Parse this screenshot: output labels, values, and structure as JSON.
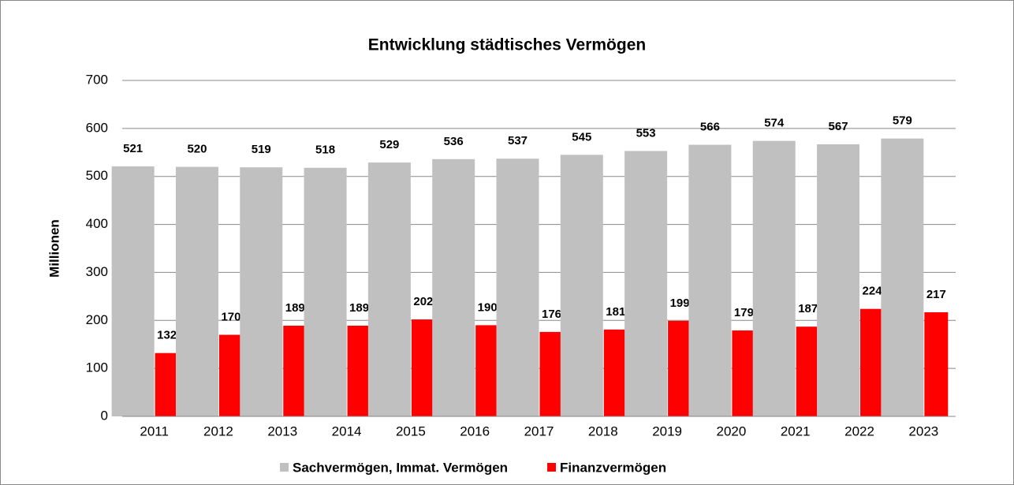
{
  "chart_data": {
    "type": "bar",
    "title": "Entwicklung städtisches Vermögen",
    "y_label": "Millionen",
    "categories": [
      "2011",
      "2012",
      "2013",
      "2014",
      "2015",
      "2016",
      "2017",
      "2018",
      "2019",
      "2020",
      "2021",
      "2022",
      "2023"
    ],
    "series": [
      {
        "name": "Sachvermögen, Immat. Vermögen",
        "color": "#c0c0c0",
        "values": [
          521,
          520,
          519,
          518,
          529,
          536,
          537,
          545,
          553,
          566,
          574,
          567,
          579
        ]
      },
      {
        "name": "Finanzvermögen",
        "color": "#ff0000",
        "values": [
          132,
          170,
          189,
          189,
          202,
          190,
          176,
          181,
          199,
          179,
          187,
          224,
          217
        ]
      }
    ],
    "ylim": [
      0,
      700
    ],
    "yticks": [
      0,
      100,
      200,
      300,
      400,
      500,
      600,
      700
    ],
    "grid": true,
    "legend": "bottom"
  }
}
